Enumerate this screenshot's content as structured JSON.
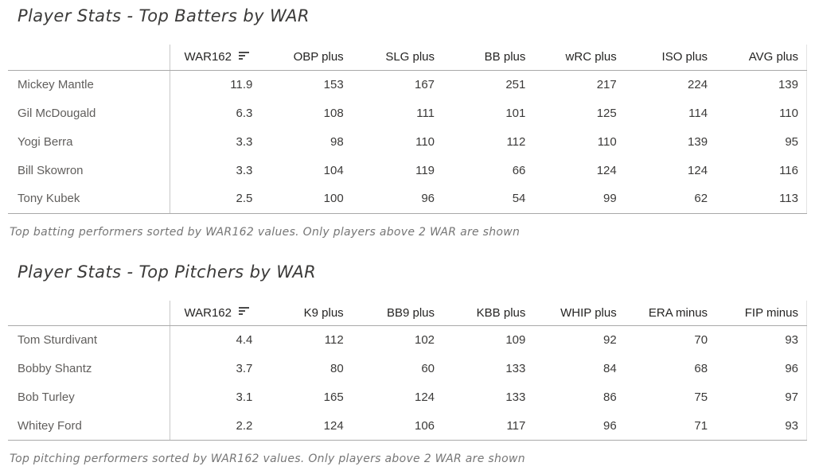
{
  "colors": {
    "background": "#ffffff",
    "title_text": "#3b3a39",
    "header_text": "#252423",
    "player_name_text": "#605e5c",
    "value_text": "#3b3a39",
    "caption_text": "#767676",
    "header_rule": "#a9a9a9",
    "column_divider": "#c8c8c8",
    "right_edge_rule": "#e4e4e4"
  },
  "chart_data": [
    {
      "type": "table",
      "title": "Player Stats - Top Batters by WAR",
      "caption": "Top batting performers sorted by WAR162 values. Only players above 2 WAR are shown",
      "row_header_label": "",
      "columns": [
        "WAR162",
        "OBP plus",
        "SLG plus",
        "BB plus",
        "wRC plus",
        "ISO plus",
        "AVG plus"
      ],
      "sort": {
        "column": "WAR162",
        "direction": "descending",
        "icon": "sort-descending-icon"
      },
      "rows": [
        {
          "player": "Mickey Mantle",
          "values": [
            "11.9",
            "153",
            "167",
            "251",
            "217",
            "224",
            "139"
          ]
        },
        {
          "player": "Gil McDougald",
          "values": [
            "6.3",
            "108",
            "111",
            "101",
            "125",
            "114",
            "110"
          ]
        },
        {
          "player": "Yogi Berra",
          "values": [
            "3.3",
            "98",
            "110",
            "112",
            "110",
            "139",
            "95"
          ]
        },
        {
          "player": "Bill Skowron",
          "values": [
            "3.3",
            "104",
            "119",
            "66",
            "124",
            "124",
            "116"
          ]
        },
        {
          "player": "Tony Kubek",
          "values": [
            "2.5",
            "100",
            "96",
            "54",
            "99",
            "62",
            "113"
          ]
        }
      ]
    },
    {
      "type": "table",
      "title": "Player Stats - Top Pitchers by WAR",
      "caption": "Top pitching performers sorted by WAR162 values. Only players above 2 WAR are shown",
      "row_header_label": "",
      "columns": [
        "WAR162",
        "K9 plus",
        "BB9 plus",
        "KBB plus",
        "WHIP plus",
        "ERA minus",
        "FIP minus"
      ],
      "sort": {
        "column": "WAR162",
        "direction": "descending",
        "icon": "sort-descending-icon"
      },
      "rows": [
        {
          "player": "Tom Sturdivant",
          "values": [
            "4.4",
            "112",
            "102",
            "109",
            "92",
            "70",
            "93"
          ]
        },
        {
          "player": "Bobby Shantz",
          "values": [
            "3.7",
            "80",
            "60",
            "133",
            "84",
            "68",
            "96"
          ]
        },
        {
          "player": "Bob Turley",
          "values": [
            "3.1",
            "165",
            "124",
            "133",
            "86",
            "75",
            "97"
          ]
        },
        {
          "player": "Whitey Ford",
          "values": [
            "2.2",
            "124",
            "106",
            "117",
            "96",
            "71",
            "93"
          ]
        }
      ]
    }
  ]
}
